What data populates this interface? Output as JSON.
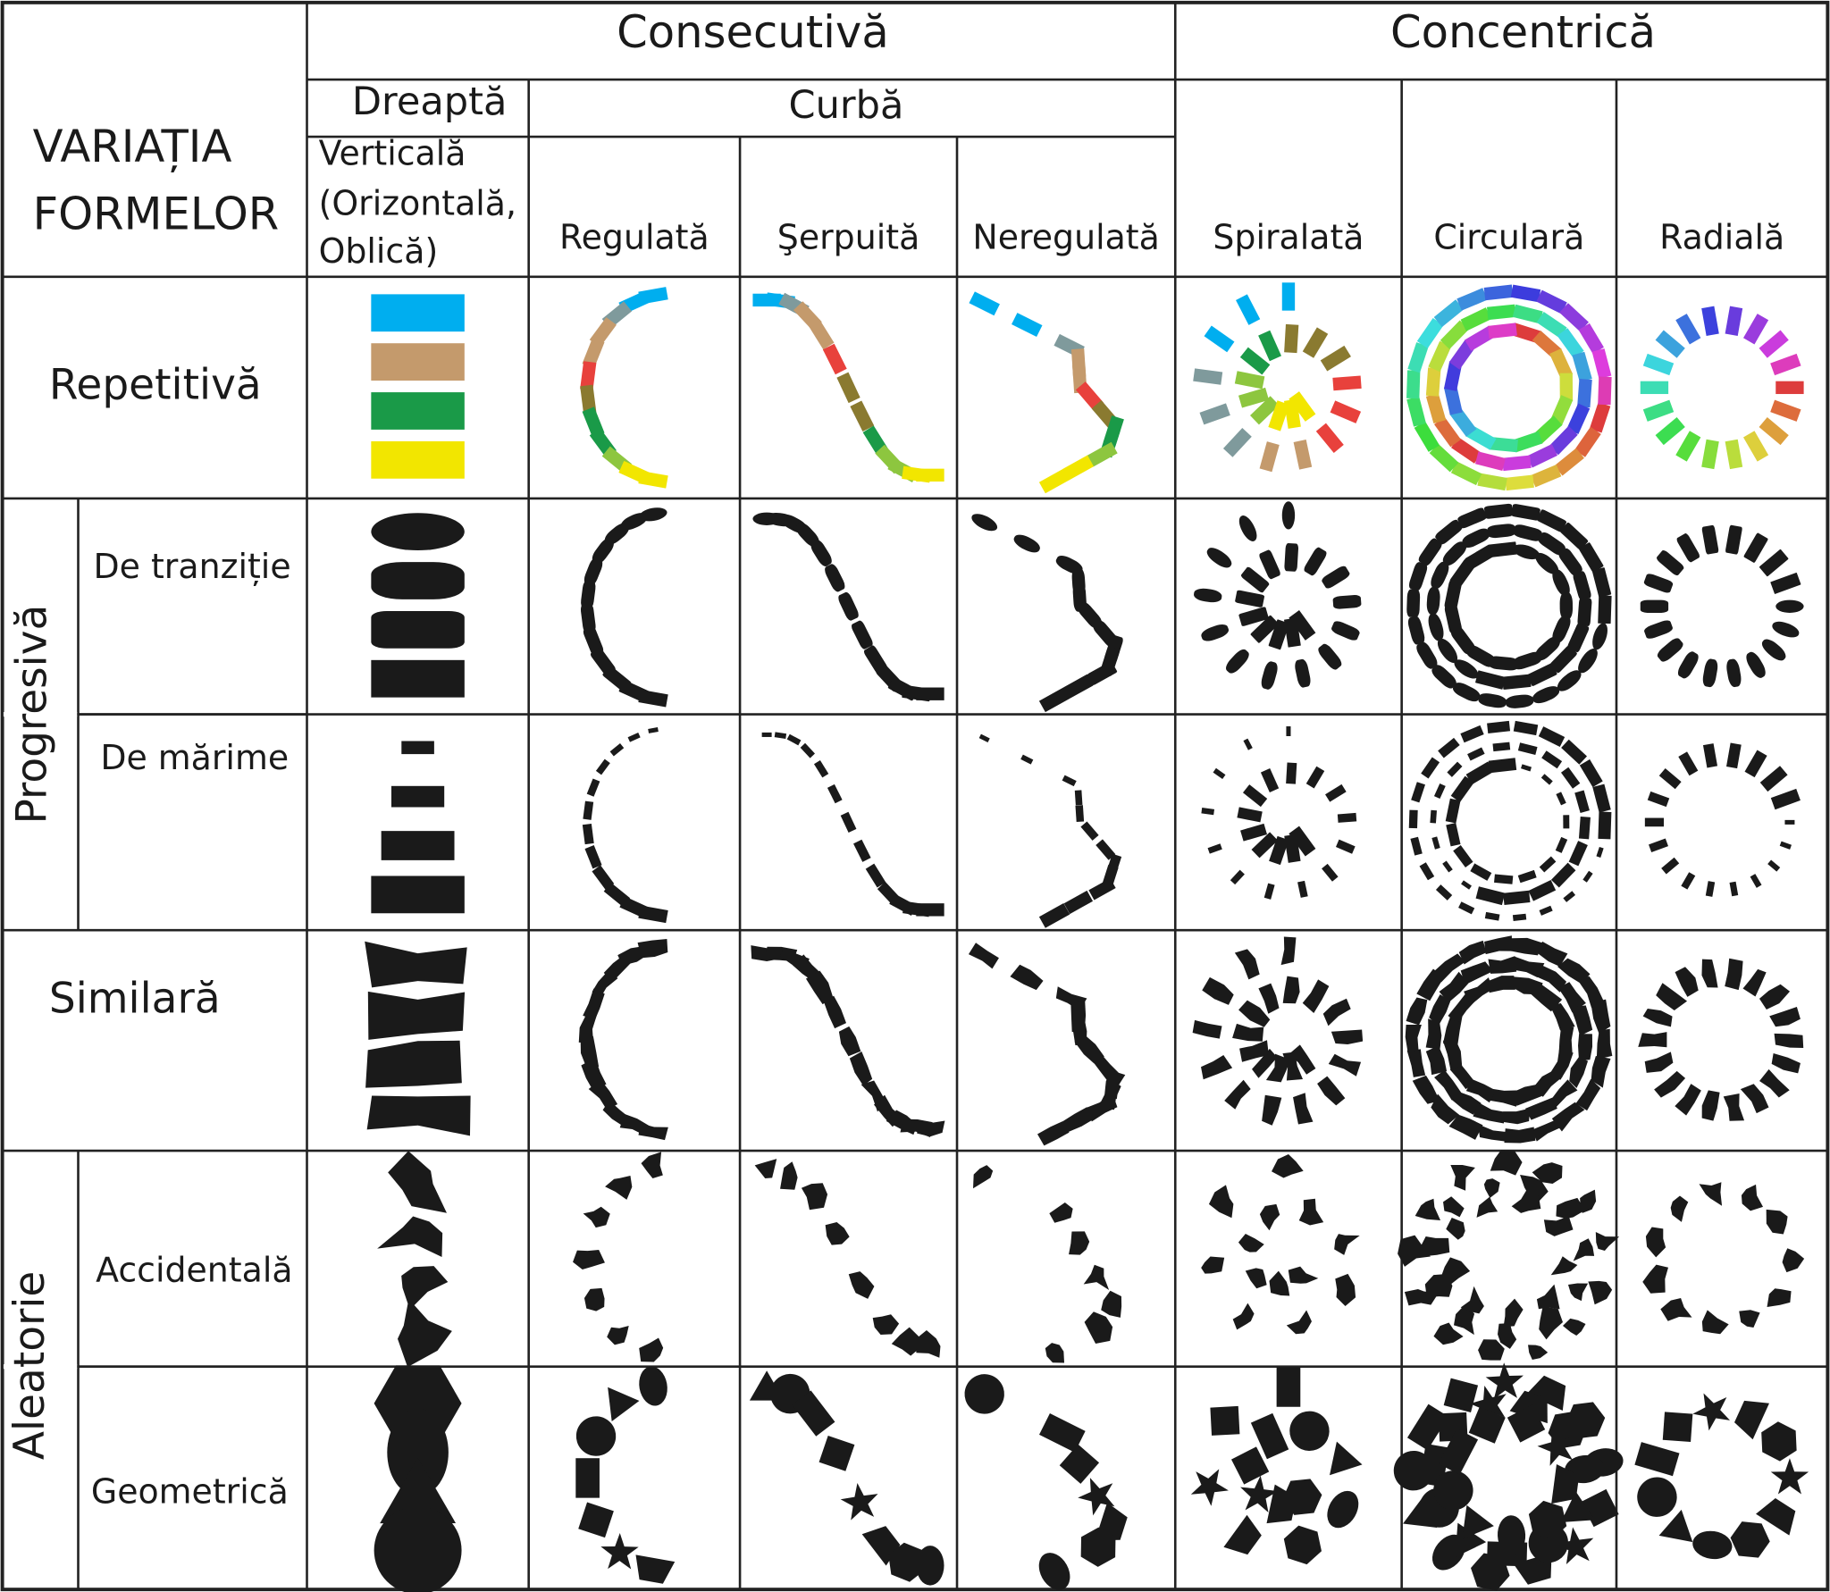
{
  "header": {
    "title_lines": [
      "VARIAȚIA",
      "FORMELOR"
    ],
    "groups": [
      "Consecutivă",
      "Concentrică"
    ],
    "subgroups": [
      "Dreaptă",
      "Curbă"
    ],
    "straight_label_lines": [
      "Verticală",
      "(Orizontală,",
      "Oblică)"
    ],
    "columns": [
      "Regulată",
      "Şerpuită",
      "Neregulată",
      "Spiralată",
      "Circulară",
      "Radială"
    ]
  },
  "row_groups": [
    "Progresivă",
    "Aleatorie"
  ],
  "rows": [
    "Repetitivă",
    "De tranziție",
    "De mărime",
    "Similară",
    "Accidentală",
    "Geometrică"
  ]
}
